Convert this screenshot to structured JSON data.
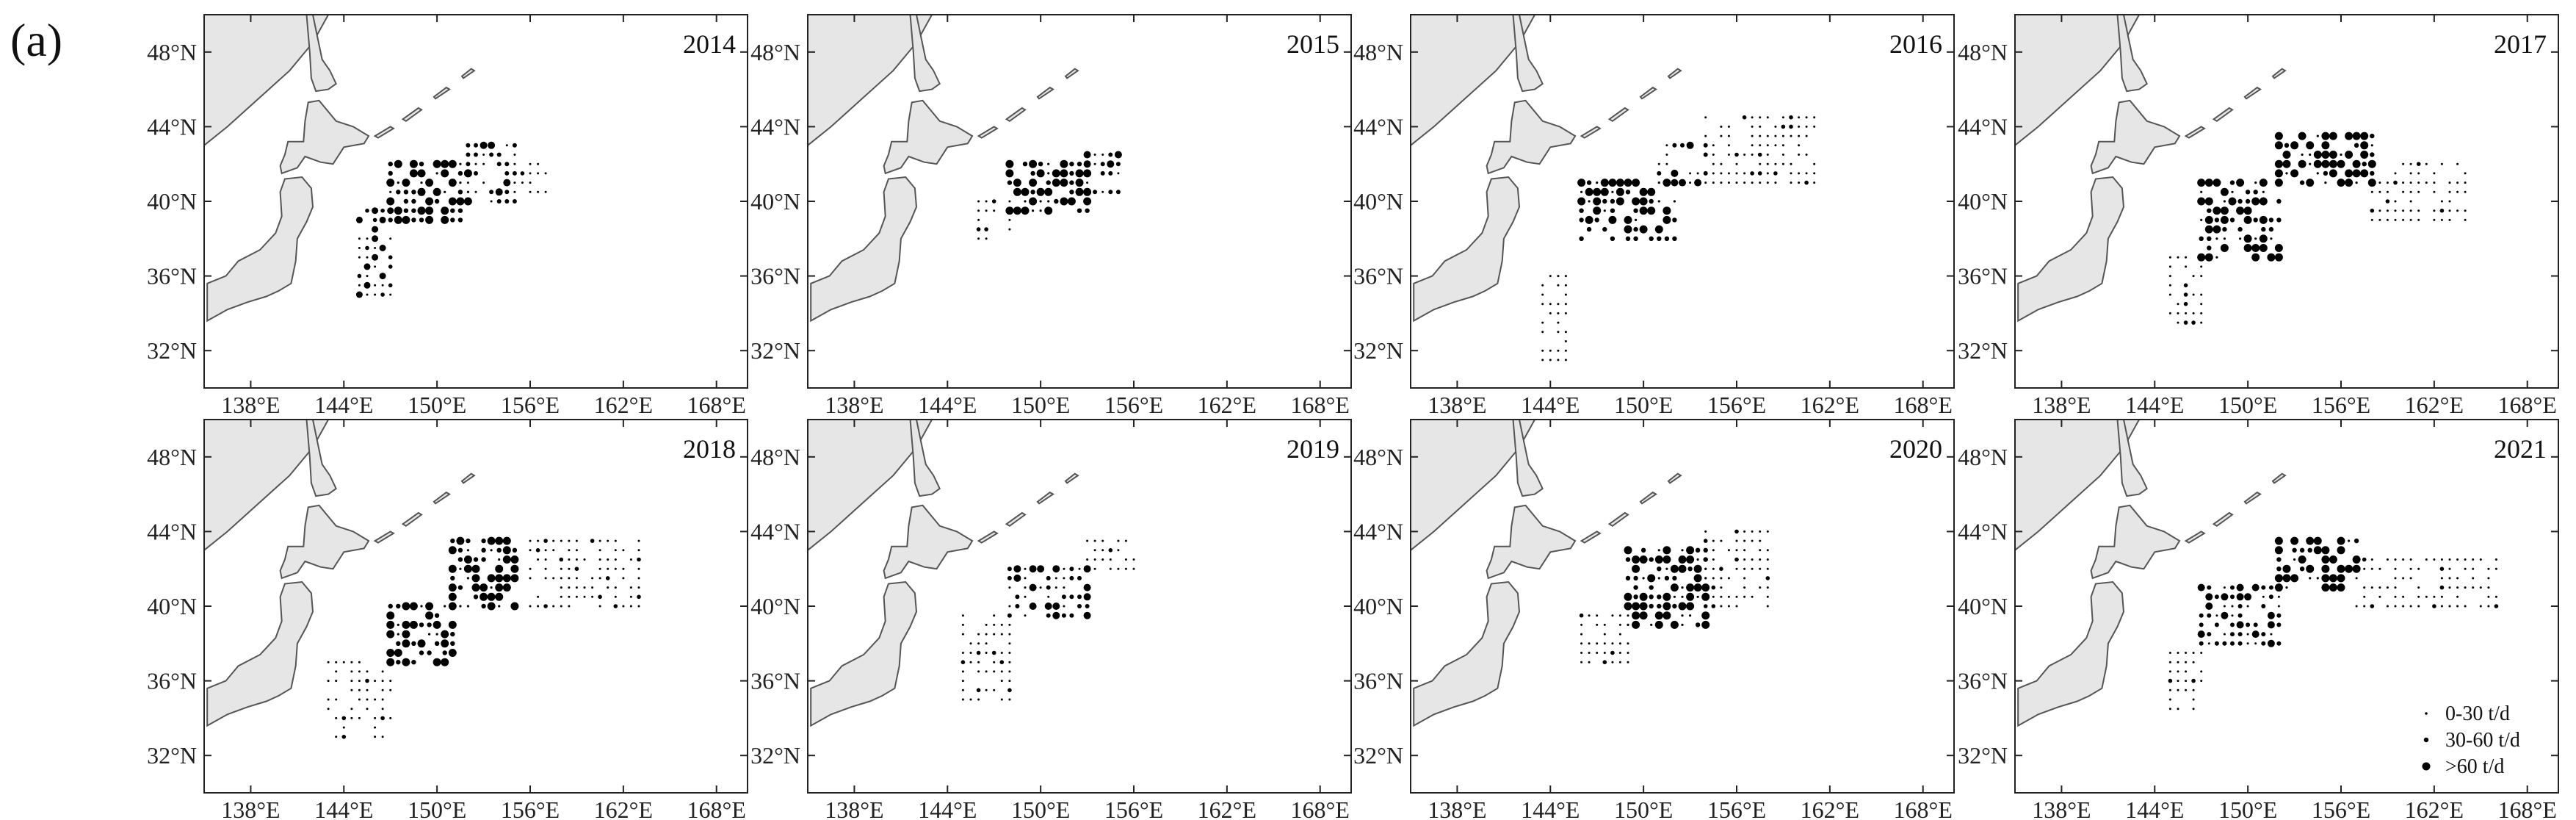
{
  "figure": {
    "panel_label": "(a)"
  },
  "axes": {
    "lat_ticks": [
      {
        "value": 48,
        "label": "48°N"
      },
      {
        "value": 44,
        "label": "44°N"
      },
      {
        "value": 40,
        "label": "40°N"
      },
      {
        "value": 36,
        "label": "36°N"
      },
      {
        "value": 32,
        "label": "32°N"
      }
    ],
    "lon_ticks": [
      {
        "value": 138,
        "label": "138°E"
      },
      {
        "value": 144,
        "label": "144°E"
      },
      {
        "value": 150,
        "label": "150°E"
      },
      {
        "value": 156,
        "label": "156°E"
      },
      {
        "value": 162,
        "label": "162°E"
      },
      {
        "value": 168,
        "label": "168°E"
      }
    ],
    "lon_range": [
      135,
      170
    ],
    "lat_range": [
      30,
      50
    ]
  },
  "legend": {
    "location": "bottom-right of 2021 panel",
    "items": [
      {
        "label": "0-30 t/d",
        "size_class": "small"
      },
      {
        "label": "30-60 t/d",
        "size_class": "medium"
      },
      {
        "label": ">60 t/d",
        "size_class": "large"
      }
    ]
  },
  "colors": {
    "land": "#e6e6e6",
    "coast": "#555555",
    "points": "#000000"
  },
  "panels": [
    {
      "year": "2014",
      "clusters": [
        {
          "lon": [
            145,
            147
          ],
          "lat": [
            35,
            39.5
          ],
          "level": "mixed"
        },
        {
          "lon": [
            147,
            152
          ],
          "lat": [
            39,
            42
          ],
          "level": "large"
        },
        {
          "lon": [
            152,
            155
          ],
          "lat": [
            40,
            43
          ],
          "level": "medium"
        },
        {
          "lon": [
            155,
            157
          ],
          "lat": [
            40.5,
            42
          ],
          "level": "small"
        }
      ]
    },
    {
      "year": "2015",
      "clusters": [
        {
          "lon": [
            146,
            148
          ],
          "lat": [
            38,
            40
          ],
          "level": "small"
        },
        {
          "lon": [
            148,
            153
          ],
          "lat": [
            39.5,
            42
          ],
          "level": "large"
        },
        {
          "lon": [
            153,
            155
          ],
          "lat": [
            40.5,
            42.5
          ],
          "level": "medium"
        }
      ]
    },
    {
      "year": "2016",
      "clusters": [
        {
          "lon": [
            143.5,
            145
          ],
          "lat": [
            31.5,
            36
          ],
          "level": "small"
        },
        {
          "lon": [
            146,
            152
          ],
          "lat": [
            38,
            41
          ],
          "level": "large"
        },
        {
          "lon": [
            151,
            154
          ],
          "lat": [
            41,
            43
          ],
          "level": "medium"
        },
        {
          "lon": [
            154,
            161
          ],
          "lat": [
            41,
            44.5
          ],
          "level": "small"
        }
      ]
    },
    {
      "year": "2017",
      "clusters": [
        {
          "lon": [
            145,
            147
          ],
          "lat": [
            33.5,
            37
          ],
          "level": "small"
        },
        {
          "lon": [
            147,
            152
          ],
          "lat": [
            37,
            41
          ],
          "level": "large"
        },
        {
          "lon": [
            152,
            158
          ],
          "lat": [
            41,
            43.5
          ],
          "level": "large"
        },
        {
          "lon": [
            158,
            164
          ],
          "lat": [
            39,
            42
          ],
          "level": "small"
        }
      ]
    },
    {
      "year": "2018",
      "clusters": [
        {
          "lon": [
            143,
            147
          ],
          "lat": [
            33,
            37
          ],
          "level": "small"
        },
        {
          "lon": [
            147,
            151
          ],
          "lat": [
            37,
            40
          ],
          "level": "large"
        },
        {
          "lon": [
            151,
            155
          ],
          "lat": [
            40,
            43.5
          ],
          "level": "large"
        },
        {
          "lon": [
            156,
            163
          ],
          "lat": [
            40,
            43.5
          ],
          "level": "small"
        }
      ]
    },
    {
      "year": "2019",
      "clusters": [
        {
          "lon": [
            145,
            148
          ],
          "lat": [
            35,
            39.5
          ],
          "level": "small"
        },
        {
          "lon": [
            148,
            153
          ],
          "lat": [
            39.5,
            42
          ],
          "level": "medium"
        },
        {
          "lon": [
            153,
            156
          ],
          "lat": [
            42,
            43.5
          ],
          "level": "small"
        }
      ]
    },
    {
      "year": "2020",
      "clusters": [
        {
          "lon": [
            146,
            149
          ],
          "lat": [
            37,
            39.5
          ],
          "level": "small"
        },
        {
          "lon": [
            149,
            154
          ],
          "lat": [
            39,
            43
          ],
          "level": "large"
        },
        {
          "lon": [
            154,
            158
          ],
          "lat": [
            40,
            44
          ],
          "level": "small"
        }
      ]
    },
    {
      "year": "2021",
      "clusters": [
        {
          "lon": [
            145,
            147
          ],
          "lat": [
            34.5,
            37.5
          ],
          "level": "small"
        },
        {
          "lon": [
            147,
            152
          ],
          "lat": [
            38,
            41
          ],
          "level": "medium"
        },
        {
          "lon": [
            152,
            157
          ],
          "lat": [
            41,
            43.5
          ],
          "level": "large"
        },
        {
          "lon": [
            157,
            166
          ],
          "lat": [
            40,
            42.5
          ],
          "level": "small"
        }
      ]
    }
  ]
}
